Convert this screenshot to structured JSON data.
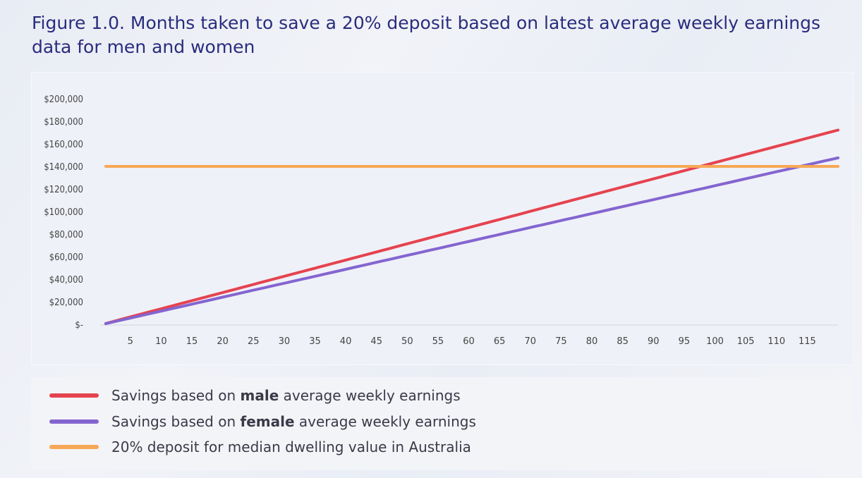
{
  "title": "Figure 1.0. Months taken to save a 20% deposit based on latest average weekly earnings data for men and women",
  "colors": {
    "male": "#e5434f",
    "female": "#8465d0",
    "deposit": "#f6a856"
  },
  "legend": {
    "male": {
      "pre": "Savings based on ",
      "bold": "male",
      "post": " average weekly earnings"
    },
    "female": {
      "pre": "Savings based on ",
      "bold": "female",
      "post": " average weekly earnings"
    },
    "deposit": {
      "pre": "20% deposit for median dwelling value in Australia",
      "bold": "",
      "post": ""
    }
  },
  "chart_data": {
    "type": "line",
    "title": "",
    "xlabel": "",
    "ylabel": "",
    "xlim": [
      1,
      120
    ],
    "ylim": [
      0,
      200000
    ],
    "x_ticks": [
      5,
      10,
      15,
      20,
      25,
      30,
      35,
      40,
      45,
      50,
      55,
      60,
      65,
      70,
      75,
      80,
      85,
      90,
      95,
      100,
      105,
      110,
      115
    ],
    "y_ticks": [
      0,
      20000,
      40000,
      60000,
      80000,
      100000,
      120000,
      140000,
      160000,
      180000,
      200000
    ],
    "y_tick_labels": [
      "$-",
      "$20,000",
      "$40,000",
      "$60,000",
      "$80,000",
      "$100,000",
      "$120,000",
      "$140,000",
      "$160,000",
      "$180,000",
      "$200,000"
    ],
    "grid": false,
    "legend_position": "bottom",
    "series": [
      {
        "name": "Savings based on male average weekly earnings",
        "x_start": 1,
        "x_end": 120,
        "y_start": 1400,
        "y_end": 172800,
        "color_key": "male"
      },
      {
        "name": "Savings based on female average weekly earnings",
        "x_start": 1,
        "x_end": 120,
        "y_start": 1200,
        "y_end": 148200,
        "color_key": "female"
      },
      {
        "name": "20% deposit for median dwelling value in Australia",
        "x_start": 1,
        "x_end": 120,
        "y_start": 140600,
        "y_end": 140600,
        "color_key": "deposit"
      }
    ]
  }
}
